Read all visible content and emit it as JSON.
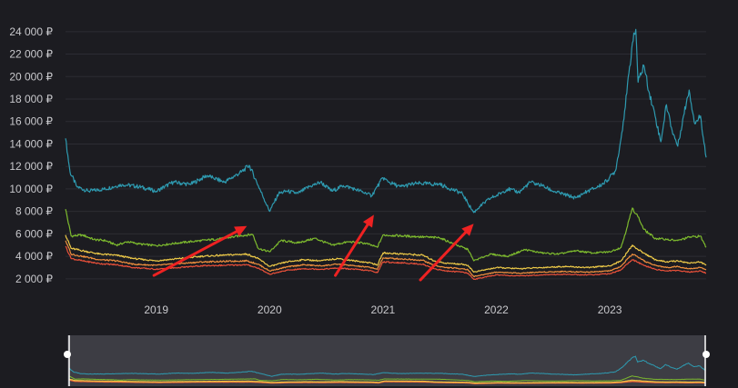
{
  "chart_data": {
    "type": "line",
    "title": "",
    "xlabel": "",
    "ylabel": "",
    "y_tick_labels": [
      "2 000 ₽",
      "4 000 ₽",
      "6 000 ₽",
      "8 000 ₽",
      "10 000 ₽",
      "12 000 ₽",
      "14 000 ₽",
      "16 000 ₽",
      "18 000 ₽",
      "20 000 ₽",
      "22 000 ₽",
      "24 000 ₽"
    ],
    "y_ticks": [
      2000,
      4000,
      6000,
      8000,
      10000,
      12000,
      14000,
      16000,
      18000,
      20000,
      22000,
      24000
    ],
    "x_tick_labels": [
      "2019",
      "2020",
      "2021",
      "2022",
      "2023"
    ],
    "x_ticks": [
      2019.0,
      2020.0,
      2021.0,
      2022.0,
      2023.0
    ],
    "xlim": [
      2018.2,
      2023.85
    ],
    "ylim": [
      1500,
      25200
    ],
    "grid": "horizontal",
    "legend": "none",
    "series": [
      {
        "color": "#2e9ab0",
        "x": [
          2018.2,
          2018.24,
          2018.3,
          2018.4,
          2018.55,
          2018.7,
          2018.85,
          2019.0,
          2019.15,
          2019.3,
          2019.45,
          2019.5,
          2019.6,
          2019.75,
          2019.82,
          2019.9,
          2020.0,
          2020.08,
          2020.15,
          2020.25,
          2020.35,
          2020.45,
          2020.55,
          2020.65,
          2020.75,
          2020.85,
          2020.9,
          2020.95,
          2021.0,
          2021.05,
          2021.15,
          2021.3,
          2021.5,
          2021.6,
          2021.7,
          2021.75,
          2021.8,
          2021.85,
          2021.95,
          2022.0,
          2022.1,
          2022.2,
          2022.3,
          2022.4,
          2022.5,
          2022.6,
          2022.7,
          2022.8,
          2022.9,
          2022.97,
          2023.05,
          2023.1,
          2023.15,
          2023.2,
          2023.23,
          2023.25,
          2023.3,
          2023.35,
          2023.4,
          2023.45,
          2023.5,
          2023.55,
          2023.6,
          2023.65,
          2023.7,
          2023.75,
          2023.8,
          2023.85
        ],
        "values": [
          14500,
          11500,
          10200,
          9800,
          10000,
          10400,
          10200,
          9800,
          10600,
          10400,
          11200,
          11000,
          10600,
          11500,
          12100,
          10300,
          8000,
          9600,
          9800,
          9600,
          10200,
          10600,
          9800,
          10300,
          10000,
          9600,
          9400,
          10200,
          11000,
          10600,
          10200,
          10500,
          10400,
          10000,
          9600,
          8700,
          7900,
          8400,
          9200,
          9400,
          10000,
          9700,
          10600,
          10300,
          9800,
          9500,
          9200,
          9800,
          10200,
          10700,
          11600,
          14500,
          18500,
          23000,
          24200,
          19500,
          21000,
          18500,
          16500,
          14200,
          17500,
          15200,
          13800,
          16500,
          18800,
          15800,
          16500,
          12800
        ]
      },
      {
        "color": "#7dba2e",
        "x": [
          2018.2,
          2018.25,
          2018.35,
          2018.45,
          2018.55,
          2018.65,
          2018.75,
          2018.85,
          2019.0,
          2019.2,
          2019.4,
          2019.6,
          2019.75,
          2019.85,
          2019.9,
          2020.0,
          2020.1,
          2020.25,
          2020.4,
          2020.55,
          2020.7,
          2020.85,
          2020.95,
          2021.0,
          2021.1,
          2021.3,
          2021.5,
          2021.65,
          2021.75,
          2021.8,
          2021.95,
          2022.1,
          2022.25,
          2022.4,
          2022.55,
          2022.7,
          2022.85,
          2023.0,
          2023.1,
          2023.15,
          2023.2,
          2023.25,
          2023.3,
          2023.4,
          2023.5,
          2023.6,
          2023.7,
          2023.8,
          2023.85
        ],
        "values": [
          8200,
          5800,
          5900,
          5500,
          5400,
          5000,
          5300,
          5100,
          4950,
          5200,
          5400,
          5600,
          5850,
          5950,
          4700,
          4400,
          5400,
          5200,
          5600,
          5000,
          5300,
          5150,
          4800,
          5900,
          5850,
          5750,
          5650,
          5000,
          4600,
          3600,
          4200,
          4000,
          4600,
          4300,
          4200,
          4500,
          4300,
          4400,
          4800,
          6500,
          8300,
          7500,
          6400,
          5600,
          5500,
          5400,
          5700,
          5800,
          4800
        ]
      },
      {
        "color": "#eeca48",
        "x": [
          2018.2,
          2018.25,
          2018.35,
          2018.5,
          2018.65,
          2018.8,
          2019.0,
          2019.2,
          2019.4,
          2019.6,
          2019.8,
          2019.9,
          2020.0,
          2020.15,
          2020.3,
          2020.45,
          2020.6,
          2020.75,
          2020.9,
          2020.95,
          2021.0,
          2021.2,
          2021.35,
          2021.45,
          2021.55,
          2021.7,
          2021.75,
          2021.8,
          2022.0,
          2022.2,
          2022.4,
          2022.6,
          2022.8,
          2023.0,
          2023.1,
          2023.15,
          2023.2,
          2023.25,
          2023.3,
          2023.4,
          2023.5,
          2023.6,
          2023.7,
          2023.8,
          2023.85
        ],
        "values": [
          5900,
          4700,
          4500,
          4200,
          4100,
          3800,
          3600,
          3800,
          4000,
          4100,
          4200,
          3800,
          3100,
          3500,
          3700,
          3600,
          3800,
          3600,
          3400,
          3200,
          4300,
          4200,
          4100,
          3600,
          3400,
          3300,
          3200,
          2600,
          3000,
          2900,
          3000,
          3100,
          3000,
          3150,
          3600,
          4300,
          5000,
          4600,
          4300,
          3700,
          3500,
          3600,
          3400,
          3500,
          3200
        ]
      },
      {
        "color": "#f0903e",
        "x": [
          2018.2,
          2018.25,
          2018.35,
          2018.5,
          2018.65,
          2018.8,
          2019.0,
          2019.2,
          2019.4,
          2019.6,
          2019.8,
          2019.9,
          2020.0,
          2020.15,
          2020.3,
          2020.45,
          2020.6,
          2020.75,
          2020.9,
          2020.95,
          2021.0,
          2021.2,
          2021.35,
          2021.45,
          2021.55,
          2021.7,
          2021.75,
          2021.8,
          2022.0,
          2022.2,
          2022.4,
          2022.6,
          2022.8,
          2023.0,
          2023.1,
          2023.15,
          2023.2,
          2023.25,
          2023.3,
          2023.4,
          2023.5,
          2023.6,
          2023.7,
          2023.8,
          2023.85
        ],
        "values": [
          5400,
          4200,
          4000,
          3700,
          3600,
          3300,
          3200,
          3350,
          3500,
          3550,
          3600,
          3300,
          2700,
          3050,
          3250,
          3150,
          3300,
          3150,
          3000,
          2850,
          3850,
          3750,
          3650,
          3200,
          3000,
          2900,
          2800,
          2200,
          2600,
          2500,
          2600,
          2650,
          2600,
          2700,
          3100,
          3700,
          4200,
          3900,
          3600,
          3200,
          3000,
          3100,
          2900,
          3000,
          2800
        ]
      },
      {
        "color": "#e9503a",
        "x": [
          2018.2,
          2018.25,
          2018.35,
          2018.5,
          2018.65,
          2018.8,
          2019.0,
          2019.2,
          2019.4,
          2019.6,
          2019.8,
          2019.9,
          2020.0,
          2020.15,
          2020.3,
          2020.45,
          2020.6,
          2020.75,
          2020.9,
          2020.95,
          2021.0,
          2021.2,
          2021.35,
          2021.45,
          2021.55,
          2021.7,
          2021.75,
          2021.8,
          2022.0,
          2022.2,
          2022.4,
          2022.6,
          2022.8,
          2023.0,
          2023.1,
          2023.15,
          2023.2,
          2023.25,
          2023.3,
          2023.4,
          2023.5,
          2023.6,
          2023.7,
          2023.8,
          2023.85
        ],
        "values": [
          4900,
          3800,
          3600,
          3350,
          3250,
          3000,
          2850,
          3000,
          3150,
          3200,
          3250,
          2950,
          2400,
          2750,
          2900,
          2850,
          2950,
          2850,
          2700,
          2550,
          3500,
          3400,
          3300,
          2900,
          2700,
          2600,
          2500,
          1950,
          2350,
          2250,
          2350,
          2400,
          2350,
          2450,
          2800,
          3300,
          3700,
          3450,
          3200,
          2850,
          2700,
          2750,
          2600,
          2700,
          2500
        ]
      }
    ],
    "annotations": [
      {
        "type": "arrow",
        "color": "#ee2222",
        "from": [
          2018.98,
          2300
        ],
        "to": [
          2019.8,
          6700
        ]
      },
      {
        "type": "arrow",
        "color": "#ee2222",
        "from": [
          2020.58,
          2300
        ],
        "to": [
          2020.92,
          7700
        ]
      },
      {
        "type": "arrow",
        "color": "#ee2222",
        "from": [
          2021.33,
          1900
        ],
        "to": [
          2021.8,
          6900
        ]
      }
    ],
    "navigator": {
      "range": [
        2018.2,
        2023.85
      ]
    }
  }
}
